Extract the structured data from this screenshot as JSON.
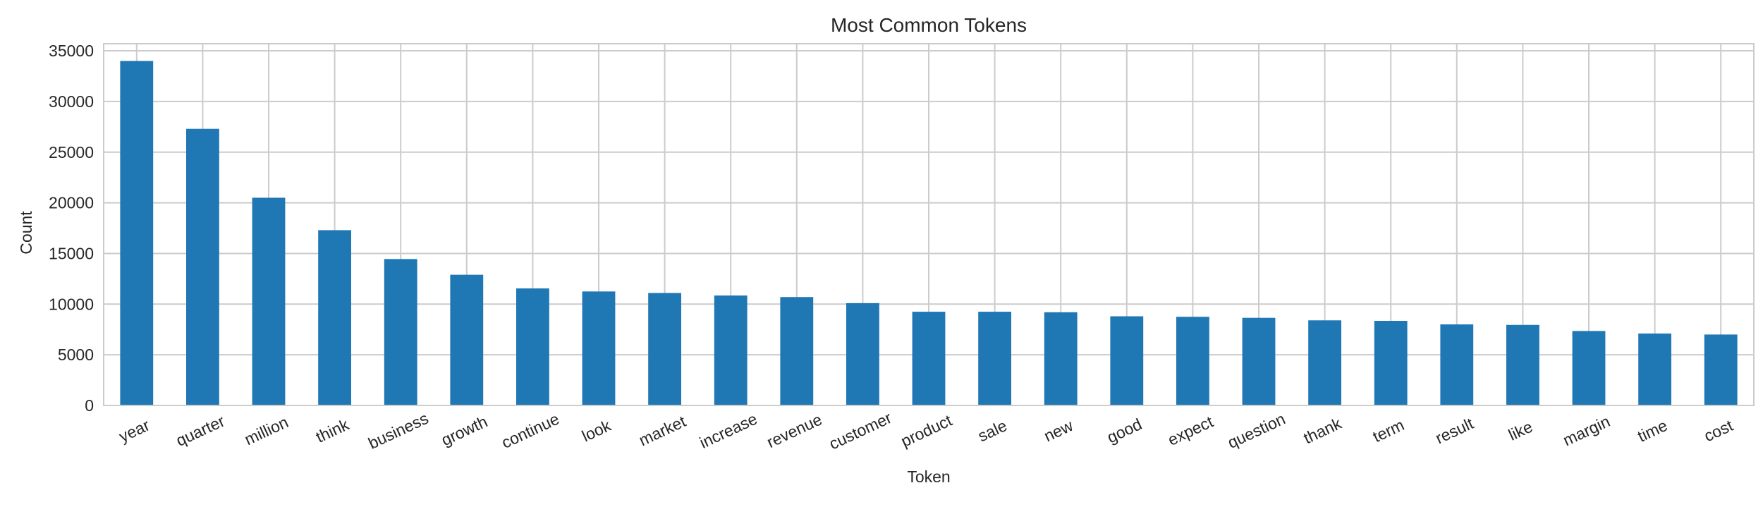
{
  "chart_data": {
    "type": "bar",
    "title": "Most Common Tokens",
    "xlabel": "Token",
    "ylabel": "Count",
    "categories": [
      "year",
      "quarter",
      "million",
      "think",
      "business",
      "growth",
      "continue",
      "look",
      "market",
      "increase",
      "revenue",
      "customer",
      "product",
      "sale",
      "new",
      "good",
      "expect",
      "question",
      "thank",
      "term",
      "result",
      "like",
      "margin",
      "time",
      "cost"
    ],
    "values": [
      34000,
      27300,
      20500,
      17300,
      14450,
      12900,
      11550,
      11250,
      11100,
      10850,
      10700,
      10100,
      9250,
      9250,
      9200,
      8800,
      8750,
      8650,
      8400,
      8350,
      8000,
      7950,
      7350,
      7100,
      7000
    ],
    "ylim": [
      0,
      35700
    ],
    "yticks": [
      0,
      5000,
      10000,
      15000,
      20000,
      25000,
      30000,
      35000
    ],
    "grid": true,
    "legend": "none",
    "colors": {
      "bar": "#1f77b4",
      "grid": "#cccccc",
      "text": "#262626"
    }
  }
}
